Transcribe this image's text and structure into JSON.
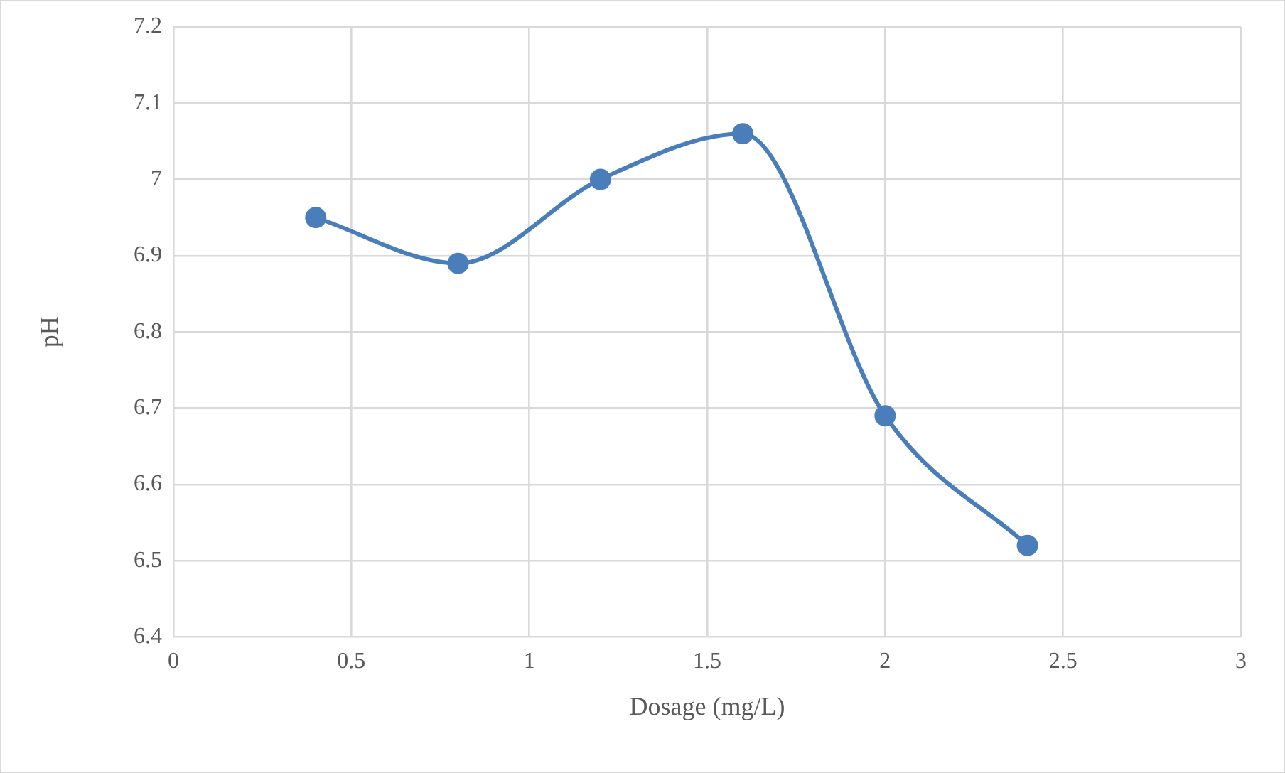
{
  "chart_data": {
    "type": "line",
    "xlabel": "Dosage (mg/L)",
    "ylabel": "pH",
    "x": [
      0.4,
      0.8,
      1.2,
      1.6,
      2.0,
      2.4
    ],
    "series": [
      {
        "color": "#4a7ebb",
        "values": [
          6.95,
          6.89,
          7.0,
          7.06,
          6.69,
          6.52
        ]
      }
    ],
    "xlim": [
      0,
      3
    ],
    "xticks": [
      0,
      0.5,
      1,
      1.5,
      2,
      2.5,
      3
    ],
    "ylim": [
      6.4,
      7.2
    ],
    "yticks": [
      6.4,
      6.5,
      6.6,
      6.7,
      6.8,
      6.9,
      7,
      7.1,
      7.2
    ],
    "grid": true,
    "legend": false,
    "marker": "circle",
    "line_style": "solid"
  }
}
